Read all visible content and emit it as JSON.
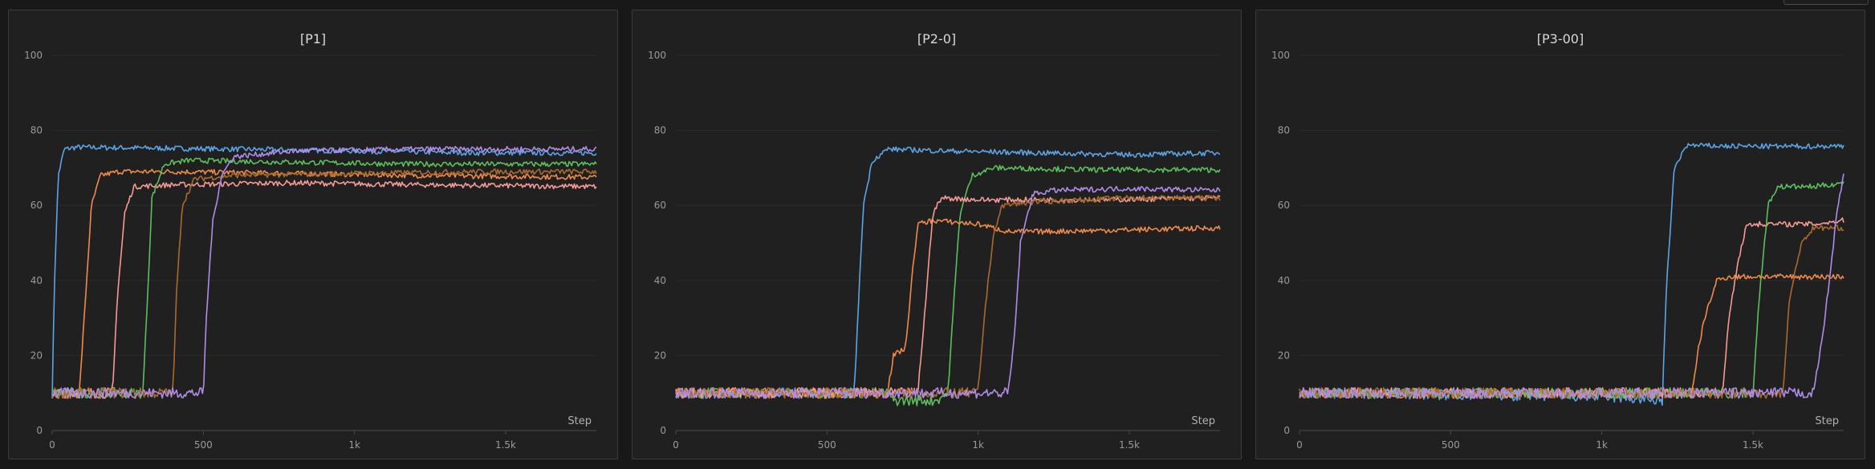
{
  "chart_data": [
    {
      "type": "line",
      "title": "[P1]",
      "xlabel": "Step",
      "ylabel": "",
      "xlim": [
        0,
        1800
      ],
      "ylim": [
        0,
        100
      ],
      "x_ticks": [
        0,
        500,
        1000,
        1500
      ],
      "x_tick_labels": [
        "0",
        "500",
        "1k",
        "1.5k"
      ],
      "y_ticks": [
        0,
        20,
        40,
        60,
        80,
        100
      ],
      "grid": true,
      "series": [
        {
          "color": "#5ba4e6",
          "points": [
            [
              0,
              10
            ],
            [
              8,
              40
            ],
            [
              20,
              68
            ],
            [
              40,
              75
            ],
            [
              80,
              75.5
            ],
            [
              300,
              75.3
            ],
            [
              600,
              75
            ],
            [
              1000,
              74.5
            ],
            [
              1400,
              74
            ],
            [
              1800,
              74
            ]
          ]
        },
        {
          "color": "#f08a4b",
          "points": [
            [
              0,
              10
            ],
            [
              90,
              10
            ],
            [
              110,
              35
            ],
            [
              130,
              60
            ],
            [
              160,
              68
            ],
            [
              220,
              69
            ],
            [
              400,
              69
            ],
            [
              800,
              68.5
            ],
            [
              1200,
              68
            ],
            [
              1800,
              67.5
            ]
          ]
        },
        {
          "color": "#f59a95",
          "points": [
            [
              0,
              10
            ],
            [
              200,
              10
            ],
            [
              215,
              35
            ],
            [
              240,
              58
            ],
            [
              270,
              65
            ],
            [
              400,
              65.5
            ],
            [
              800,
              66
            ],
            [
              1200,
              65.5
            ],
            [
              1800,
              65
            ]
          ]
        },
        {
          "color": "#5bbf5b",
          "points": [
            [
              0,
              10
            ],
            [
              300,
              10
            ],
            [
              315,
              35
            ],
            [
              330,
              62
            ],
            [
              370,
              71
            ],
            [
              450,
              72
            ],
            [
              800,
              71.5
            ],
            [
              1200,
              71
            ],
            [
              1800,
              71
            ]
          ]
        },
        {
          "color": "#a86a2e",
          "points": [
            [
              0,
              10
            ],
            [
              400,
              10
            ],
            [
              410,
              35
            ],
            [
              430,
              60
            ],
            [
              470,
              67
            ],
            [
              600,
              68
            ],
            [
              1000,
              68.5
            ],
            [
              1400,
              69
            ],
            [
              1800,
              69
            ]
          ]
        },
        {
          "color": "#b08ce8",
          "points": [
            [
              0,
              10
            ],
            [
              500,
              10
            ],
            [
              510,
              30
            ],
            [
              530,
              55
            ],
            [
              560,
              68
            ],
            [
              600,
              73
            ],
            [
              800,
              74.5
            ],
            [
              1200,
              75
            ],
            [
              1800,
              75
            ]
          ]
        }
      ]
    },
    {
      "type": "line",
      "title": "[P2-0]",
      "xlabel": "Step",
      "ylabel": "",
      "xlim": [
        0,
        1800
      ],
      "ylim": [
        0,
        100
      ],
      "x_ticks": [
        0,
        500,
        1000,
        1500
      ],
      "x_tick_labels": [
        "0",
        "500",
        "1k",
        "1.5k"
      ],
      "y_ticks": [
        0,
        20,
        40,
        60,
        80,
        100
      ],
      "grid": true,
      "series": [
        {
          "color": "#5ba4e6",
          "points": [
            [
              0,
              10
            ],
            [
              590,
              10
            ],
            [
              605,
              35
            ],
            [
              620,
              60
            ],
            [
              650,
              72
            ],
            [
              700,
              75
            ],
            [
              900,
              74.5
            ],
            [
              1200,
              74
            ],
            [
              1500,
              73.5
            ],
            [
              1800,
              74
            ]
          ]
        },
        {
          "color": "#5bbf5b",
          "points": [
            [
              0,
              10
            ],
            [
              700,
              10
            ],
            [
              720,
              8
            ],
            [
              860,
              8
            ],
            [
              900,
              10
            ],
            [
              920,
              35
            ],
            [
              940,
              58
            ],
            [
              980,
              68
            ],
            [
              1050,
              70
            ],
            [
              1400,
              69.5
            ],
            [
              1800,
              69.5
            ]
          ]
        },
        {
          "color": "#f08a4b",
          "points": [
            [
              0,
              10
            ],
            [
              700,
              10
            ],
            [
              720,
              20
            ],
            [
              760,
              22
            ],
            [
              780,
              40
            ],
            [
              800,
              55
            ],
            [
              850,
              56
            ],
            [
              1000,
              55
            ],
            [
              1100,
              53
            ],
            [
              1200,
              53
            ],
            [
              1500,
              53.5
            ],
            [
              1800,
              54
            ]
          ]
        },
        {
          "color": "#f59a95",
          "points": [
            [
              0,
              10
            ],
            [
              800,
              10
            ],
            [
              820,
              28
            ],
            [
              850,
              58
            ],
            [
              880,
              62
            ],
            [
              1000,
              61.5
            ],
            [
              1400,
              61.5
            ],
            [
              1800,
              62
            ]
          ]
        },
        {
          "color": "#a86a2e",
          "points": [
            [
              0,
              10
            ],
            [
              1000,
              10
            ],
            [
              1020,
              30
            ],
            [
              1050,
              52
            ],
            [
              1080,
              60
            ],
            [
              1200,
              61
            ],
            [
              1500,
              62
            ],
            [
              1800,
              62
            ]
          ]
        },
        {
          "color": "#b08ce8",
          "points": [
            [
              0,
              10
            ],
            [
              1100,
              10
            ],
            [
              1120,
              25
            ],
            [
              1140,
              50
            ],
            [
              1180,
              63
            ],
            [
              1250,
              64
            ],
            [
              1500,
              64.5
            ],
            [
              1800,
              64
            ]
          ]
        }
      ]
    },
    {
      "type": "line",
      "title": "[P3-00]",
      "xlabel": "Step",
      "ylabel": "",
      "xlim": [
        0,
        1800
      ],
      "ylim": [
        0,
        100
      ],
      "x_ticks": [
        0,
        500,
        1000,
        1500
      ],
      "x_tick_labels": [
        "0",
        "500",
        "1k",
        "1.5k"
      ],
      "y_ticks": [
        0,
        20,
        40,
        60,
        80,
        100
      ],
      "grid": true,
      "series": [
        {
          "color": "#5ba4e6",
          "points": [
            [
              0,
              10
            ],
            [
              1000,
              9
            ],
            [
              1200,
              8
            ],
            [
              1215,
              40
            ],
            [
              1240,
              70
            ],
            [
              1280,
              76
            ],
            [
              1400,
              75.8
            ],
            [
              1600,
              75.7
            ],
            [
              1800,
              75.8
            ]
          ]
        },
        {
          "color": "#f08a4b",
          "points": [
            [
              0,
              10
            ],
            [
              1300,
              10
            ],
            [
              1320,
              22
            ],
            [
              1340,
              30
            ],
            [
              1380,
              40
            ],
            [
              1420,
              41
            ],
            [
              1600,
              41
            ],
            [
              1800,
              41
            ]
          ]
        },
        {
          "color": "#f59a95",
          "points": [
            [
              0,
              10
            ],
            [
              1400,
              10
            ],
            [
              1420,
              30
            ],
            [
              1450,
              45
            ],
            [
              1480,
              55
            ],
            [
              1550,
              55
            ],
            [
              1700,
              55
            ],
            [
              1800,
              56
            ]
          ]
        },
        {
          "color": "#5bbf5b",
          "points": [
            [
              0,
              10
            ],
            [
              1500,
              10
            ],
            [
              1520,
              35
            ],
            [
              1550,
              60
            ],
            [
              1580,
              65
            ],
            [
              1700,
              65
            ],
            [
              1800,
              66
            ]
          ]
        },
        {
          "color": "#a86a2e",
          "points": [
            [
              0,
              10
            ],
            [
              1600,
              10
            ],
            [
              1620,
              35
            ],
            [
              1660,
              50
            ],
            [
              1700,
              54
            ],
            [
              1800,
              54
            ]
          ]
        },
        {
          "color": "#b08ce8",
          "points": [
            [
              0,
              10
            ],
            [
              1700,
              10
            ],
            [
              1730,
              25
            ],
            [
              1760,
              45
            ],
            [
              1780,
              60
            ],
            [
              1800,
              68
            ]
          ]
        }
      ]
    }
  ]
}
